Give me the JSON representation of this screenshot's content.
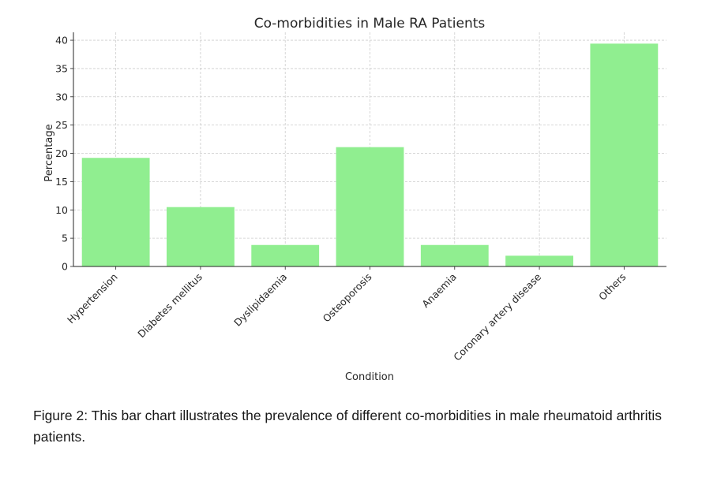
{
  "chart_data": {
    "type": "bar",
    "title": "Co-morbidities in Male RA Patients",
    "xlabel": "Condition",
    "ylabel": "Percentage",
    "categories": [
      "Hypertension",
      "Diabetes mellitus",
      "Dyslipidaemia",
      "Osteoporosis",
      "Anaemia",
      "Coronary artery disease",
      "Others"
    ],
    "values": [
      19.2,
      10.5,
      3.8,
      21.1,
      3.8,
      1.9,
      39.4
    ],
    "ylim": [
      0,
      41.4
    ],
    "yticks": [
      0,
      5,
      10,
      15,
      20,
      25,
      30,
      35,
      40
    ],
    "grid": true,
    "bar_color": "#90ee90"
  },
  "caption": "Figure 2: This bar chart illustrates the prevalence of different co-morbidities in male rheumatoid arthritis patients."
}
